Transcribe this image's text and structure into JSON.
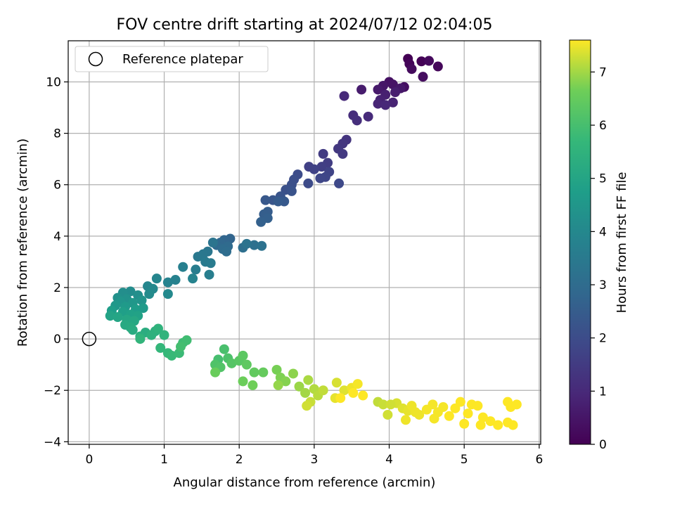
{
  "chart_data": {
    "type": "scatter",
    "title": "FOV centre drift starting at 2024/07/12 02:04:05",
    "xlabel": "Angular distance from reference (arcmin)",
    "ylabel": "Rotation from reference (arcmin)",
    "xlim": [
      -0.28,
      6.02
    ],
    "ylim": [
      -4.1,
      11.6
    ],
    "x_ticks": [
      0,
      1,
      2,
      3,
      4,
      5,
      6
    ],
    "x_tick_labels": [
      "0",
      "1",
      "2",
      "3",
      "4",
      "5",
      "6"
    ],
    "y_ticks": [
      -4,
      -2,
      0,
      2,
      4,
      6,
      8,
      10
    ],
    "y_tick_labels": [
      "−4",
      "−2",
      "0",
      "2",
      "4",
      "6",
      "8",
      "10"
    ],
    "grid": true,
    "legend": {
      "placement": "top-left",
      "entries": [
        {
          "label": "Reference platepar",
          "marker": "open-circle"
        }
      ]
    },
    "reference_point": {
      "x": 0,
      "y": 0
    },
    "colorbar": {
      "label": "Hours from first FF file",
      "colormap": "viridis",
      "range": [
        0,
        7.6
      ],
      "ticks": [
        0,
        1,
        2,
        3,
        4,
        5,
        6,
        7
      ],
      "tick_labels": [
        "0",
        "1",
        "2",
        "3",
        "4",
        "5",
        "6",
        "7"
      ]
    },
    "points": [
      {
        "x": 4.25,
        "y": 10.9,
        "t": 0.0
      },
      {
        "x": 4.43,
        "y": 10.8,
        "t": 0.05
      },
      {
        "x": 4.27,
        "y": 10.7,
        "t": 0.1
      },
      {
        "x": 4.65,
        "y": 10.6,
        "t": 0.15
      },
      {
        "x": 4.53,
        "y": 10.82,
        "t": 0.2
      },
      {
        "x": 4.3,
        "y": 10.5,
        "t": 0.25
      },
      {
        "x": 4.45,
        "y": 10.2,
        "t": 0.3
      },
      {
        "x": 4.2,
        "y": 9.8,
        "t": 0.35
      },
      {
        "x": 4.0,
        "y": 10.0,
        "t": 0.4
      },
      {
        "x": 4.05,
        "y": 9.9,
        "t": 0.45
      },
      {
        "x": 3.92,
        "y": 9.85,
        "t": 0.5
      },
      {
        "x": 4.15,
        "y": 9.75,
        "t": 0.55
      },
      {
        "x": 3.85,
        "y": 9.7,
        "t": 0.6
      },
      {
        "x": 3.63,
        "y": 9.7,
        "t": 0.65
      },
      {
        "x": 4.08,
        "y": 9.6,
        "t": 0.7
      },
      {
        "x": 3.95,
        "y": 9.5,
        "t": 0.75
      },
      {
        "x": 3.88,
        "y": 9.3,
        "t": 0.8
      },
      {
        "x": 4.05,
        "y": 9.2,
        "t": 0.85
      },
      {
        "x": 3.85,
        "y": 9.15,
        "t": 0.9
      },
      {
        "x": 3.95,
        "y": 9.1,
        "t": 0.95
      },
      {
        "x": 3.4,
        "y": 9.45,
        "t": 1.0
      },
      {
        "x": 3.72,
        "y": 8.65,
        "t": 1.05
      },
      {
        "x": 3.52,
        "y": 8.7,
        "t": 1.1
      },
      {
        "x": 3.57,
        "y": 8.5,
        "t": 1.15
      },
      {
        "x": 3.43,
        "y": 7.75,
        "t": 1.3
      },
      {
        "x": 3.38,
        "y": 7.6,
        "t": 1.35
      },
      {
        "x": 3.32,
        "y": 7.4,
        "t": 1.4
      },
      {
        "x": 3.38,
        "y": 7.2,
        "t": 1.45
      },
      {
        "x": 3.12,
        "y": 7.2,
        "t": 1.5
      },
      {
        "x": 3.18,
        "y": 6.85,
        "t": 1.55
      },
      {
        "x": 3.1,
        "y": 6.7,
        "t": 1.6
      },
      {
        "x": 2.93,
        "y": 6.7,
        "t": 1.65
      },
      {
        "x": 3.0,
        "y": 6.6,
        "t": 1.7
      },
      {
        "x": 3.2,
        "y": 6.5,
        "t": 1.75
      },
      {
        "x": 3.15,
        "y": 6.3,
        "t": 1.8
      },
      {
        "x": 3.08,
        "y": 6.25,
        "t": 1.85
      },
      {
        "x": 3.33,
        "y": 6.05,
        "t": 1.9
      },
      {
        "x": 2.92,
        "y": 6.05,
        "t": 1.95
      },
      {
        "x": 2.78,
        "y": 6.4,
        "t": 2.0
      },
      {
        "x": 2.73,
        "y": 6.2,
        "t": 2.05
      },
      {
        "x": 2.7,
        "y": 6.0,
        "t": 2.1
      },
      {
        "x": 2.62,
        "y": 5.8,
        "t": 2.15
      },
      {
        "x": 2.7,
        "y": 5.75,
        "t": 2.2
      },
      {
        "x": 2.55,
        "y": 5.55,
        "t": 2.25
      },
      {
        "x": 2.45,
        "y": 5.4,
        "t": 2.3
      },
      {
        "x": 2.35,
        "y": 5.4,
        "t": 2.35
      },
      {
        "x": 2.6,
        "y": 5.35,
        "t": 2.4
      },
      {
        "x": 2.52,
        "y": 5.35,
        "t": 2.45
      },
      {
        "x": 2.38,
        "y": 4.95,
        "t": 2.5
      },
      {
        "x": 2.33,
        "y": 4.85,
        "t": 2.55
      },
      {
        "x": 2.38,
        "y": 4.7,
        "t": 2.6
      },
      {
        "x": 2.29,
        "y": 4.55,
        "t": 2.65
      },
      {
        "x": 1.88,
        "y": 3.9,
        "t": 2.75
      },
      {
        "x": 1.8,
        "y": 3.85,
        "t": 2.8
      },
      {
        "x": 1.75,
        "y": 3.75,
        "t": 2.85
      },
      {
        "x": 1.7,
        "y": 3.65,
        "t": 2.9
      },
      {
        "x": 1.85,
        "y": 3.6,
        "t": 2.95
      },
      {
        "x": 1.78,
        "y": 3.5,
        "t": 3.0
      },
      {
        "x": 1.83,
        "y": 3.4,
        "t": 3.05
      },
      {
        "x": 2.05,
        "y": 3.55,
        "t": 3.1
      },
      {
        "x": 2.2,
        "y": 3.65,
        "t": 3.15
      },
      {
        "x": 2.3,
        "y": 3.62,
        "t": 3.2
      },
      {
        "x": 2.1,
        "y": 3.7,
        "t": 3.25
      },
      {
        "x": 1.65,
        "y": 3.75,
        "t": 3.3
      },
      {
        "x": 1.58,
        "y": 3.4,
        "t": 3.35
      },
      {
        "x": 1.52,
        "y": 3.3,
        "t": 3.4
      },
      {
        "x": 1.45,
        "y": 3.2,
        "t": 3.45
      },
      {
        "x": 1.55,
        "y": 3.0,
        "t": 3.5
      },
      {
        "x": 1.62,
        "y": 2.95,
        "t": 3.55
      },
      {
        "x": 1.42,
        "y": 2.7,
        "t": 3.6
      },
      {
        "x": 1.6,
        "y": 2.5,
        "t": 3.65
      },
      {
        "x": 1.25,
        "y": 2.8,
        "t": 3.7
      },
      {
        "x": 1.15,
        "y": 2.3,
        "t": 3.75
      },
      {
        "x": 1.05,
        "y": 2.2,
        "t": 3.8
      },
      {
        "x": 1.38,
        "y": 2.35,
        "t": 3.85
      },
      {
        "x": 0.9,
        "y": 2.35,
        "t": 3.9
      },
      {
        "x": 0.78,
        "y": 2.05,
        "t": 3.95
      },
      {
        "x": 0.85,
        "y": 1.95,
        "t": 4.0
      },
      {
        "x": 1.05,
        "y": 1.75,
        "t": 4.05
      },
      {
        "x": 0.8,
        "y": 1.75,
        "t": 4.1
      },
      {
        "x": 0.55,
        "y": 1.85,
        "t": 4.15
      },
      {
        "x": 0.45,
        "y": 1.8,
        "t": 4.2
      },
      {
        "x": 0.65,
        "y": 1.7,
        "t": 4.25
      },
      {
        "x": 0.38,
        "y": 1.6,
        "t": 4.3
      },
      {
        "x": 0.5,
        "y": 1.55,
        "t": 4.35
      },
      {
        "x": 0.7,
        "y": 1.5,
        "t": 4.4
      },
      {
        "x": 0.42,
        "y": 1.45,
        "t": 4.45
      },
      {
        "x": 0.58,
        "y": 1.4,
        "t": 4.5
      },
      {
        "x": 0.35,
        "y": 1.3,
        "t": 4.55
      },
      {
        "x": 0.48,
        "y": 1.25,
        "t": 4.6
      },
      {
        "x": 0.72,
        "y": 1.2,
        "t": 4.65
      },
      {
        "x": 0.62,
        "y": 1.15,
        "t": 4.7
      },
      {
        "x": 0.3,
        "y": 1.1,
        "t": 4.75
      },
      {
        "x": 0.45,
        "y": 1.05,
        "t": 4.8
      },
      {
        "x": 0.55,
        "y": 0.95,
        "t": 4.85
      },
      {
        "x": 0.65,
        "y": 0.9,
        "t": 4.9
      },
      {
        "x": 0.28,
        "y": 0.9,
        "t": 4.95
      },
      {
        "x": 0.38,
        "y": 0.85,
        "t": 5.0
      },
      {
        "x": 0.5,
        "y": 0.75,
        "t": 5.05
      },
      {
        "x": 0.6,
        "y": 0.7,
        "t": 5.1
      },
      {
        "x": 0.48,
        "y": 0.55,
        "t": 5.15
      },
      {
        "x": 0.55,
        "y": 0.45,
        "t": 5.2
      },
      {
        "x": 0.58,
        "y": 0.35,
        "t": 5.25
      },
      {
        "x": 0.75,
        "y": 0.25,
        "t": 5.3
      },
      {
        "x": 0.68,
        "y": 0.1,
        "t": 5.35
      },
      {
        "x": 0.88,
        "y": 0.3,
        "t": 5.4
      },
      {
        "x": 0.83,
        "y": 0.15,
        "t": 5.45
      },
      {
        "x": 0.92,
        "y": 0.4,
        "t": 5.5
      },
      {
        "x": 1.0,
        "y": 0.15,
        "t": 5.55
      },
      {
        "x": 0.68,
        "y": 0.0,
        "t": 5.6
      },
      {
        "x": 0.95,
        "y": -0.35,
        "t": 5.65
      },
      {
        "x": 1.05,
        "y": -0.55,
        "t": 5.7
      },
      {
        "x": 1.1,
        "y": -0.65,
        "t": 5.75
      },
      {
        "x": 1.2,
        "y": -0.55,
        "t": 5.8
      },
      {
        "x": 1.25,
        "y": -0.15,
        "t": 5.85
      },
      {
        "x": 1.3,
        "y": -0.05,
        "t": 5.9
      },
      {
        "x": 1.22,
        "y": -0.3,
        "t": 5.95
      },
      {
        "x": 1.72,
        "y": -0.8,
        "t": 6.0
      },
      {
        "x": 1.8,
        "y": -0.4,
        "t": 6.05
      },
      {
        "x": 1.85,
        "y": -0.75,
        "t": 6.1
      },
      {
        "x": 1.68,
        "y": -1.0,
        "t": 6.15
      },
      {
        "x": 1.75,
        "y": -1.1,
        "t": 6.2
      },
      {
        "x": 1.9,
        "y": -0.95,
        "t": 6.25
      },
      {
        "x": 2.0,
        "y": -0.85,
        "t": 6.3
      },
      {
        "x": 2.05,
        "y": -0.65,
        "t": 6.35
      },
      {
        "x": 2.1,
        "y": -1.0,
        "t": 6.4
      },
      {
        "x": 2.2,
        "y": -1.3,
        "t": 6.45
      },
      {
        "x": 2.32,
        "y": -1.3,
        "t": 6.5
      },
      {
        "x": 1.68,
        "y": -1.3,
        "t": 6.55
      },
      {
        "x": 2.05,
        "y": -1.65,
        "t": 6.6
      },
      {
        "x": 2.18,
        "y": -1.8,
        "t": 6.65
      },
      {
        "x": 2.5,
        "y": -1.2,
        "t": 6.7
      },
      {
        "x": 2.55,
        "y": -1.5,
        "t": 6.75
      },
      {
        "x": 2.62,
        "y": -1.65,
        "t": 6.8
      },
      {
        "x": 2.72,
        "y": -1.35,
        "t": 6.85
      },
      {
        "x": 2.52,
        "y": -1.8,
        "t": 6.9
      },
      {
        "x": 2.8,
        "y": -1.85,
        "t": 6.95
      },
      {
        "x": 2.88,
        "y": -2.1,
        "t": 7.0
      },
      {
        "x": 2.92,
        "y": -1.6,
        "t": 7.05
      },
      {
        "x": 3.0,
        "y": -1.95,
        "t": 7.1
      },
      {
        "x": 3.05,
        "y": -2.2,
        "t": 7.15
      },
      {
        "x": 3.12,
        "y": -2.0,
        "t": 7.2
      },
      {
        "x": 2.95,
        "y": -2.45,
        "t": 7.25
      },
      {
        "x": 2.9,
        "y": -2.6,
        "t": 7.3
      },
      {
        "x": 3.3,
        "y": -1.7,
        "t": 7.35
      },
      {
        "x": 3.4,
        "y": -2.0,
        "t": 7.4
      },
      {
        "x": 3.28,
        "y": -2.3,
        "t": 7.45
      },
      {
        "x": 3.5,
        "y": -1.9,
        "t": 7.5
      },
      {
        "x": 3.58,
        "y": -1.75,
        "t": 7.55
      },
      {
        "x": 3.52,
        "y": -2.1,
        "t": 7.6
      },
      {
        "x": 3.65,
        "y": -2.2,
        "t": 7.6
      },
      {
        "x": 3.35,
        "y": -2.3,
        "t": 7.6
      },
      {
        "x": 3.85,
        "y": -2.45,
        "t": 7.2
      },
      {
        "x": 3.92,
        "y": -2.55,
        "t": 7.25
      },
      {
        "x": 3.98,
        "y": -2.95,
        "t": 7.3
      },
      {
        "x": 4.1,
        "y": -2.5,
        "t": 7.35
      },
      {
        "x": 4.18,
        "y": -2.7,
        "t": 7.4
      },
      {
        "x": 4.25,
        "y": -2.8,
        "t": 7.45
      },
      {
        "x": 4.22,
        "y": -3.15,
        "t": 7.5
      },
      {
        "x": 4.3,
        "y": -2.6,
        "t": 7.5
      },
      {
        "x": 4.4,
        "y": -2.95,
        "t": 7.5
      },
      {
        "x": 4.5,
        "y": -2.75,
        "t": 7.55
      },
      {
        "x": 4.58,
        "y": -2.55,
        "t": 7.55
      },
      {
        "x": 4.65,
        "y": -2.85,
        "t": 7.55
      },
      {
        "x": 4.72,
        "y": -2.65,
        "t": 7.55
      },
      {
        "x": 4.8,
        "y": -3.0,
        "t": 7.6
      },
      {
        "x": 4.88,
        "y": -2.7,
        "t": 7.6
      },
      {
        "x": 4.95,
        "y": -2.45,
        "t": 7.6
      },
      {
        "x": 5.0,
        "y": -3.3,
        "t": 7.6
      },
      {
        "x": 5.05,
        "y": -2.9,
        "t": 7.6
      },
      {
        "x": 5.1,
        "y": -2.55,
        "t": 7.6
      },
      {
        "x": 5.18,
        "y": -2.6,
        "t": 7.6
      },
      {
        "x": 5.25,
        "y": -3.05,
        "t": 7.6
      },
      {
        "x": 5.35,
        "y": -3.2,
        "t": 7.6
      },
      {
        "x": 5.45,
        "y": -3.35,
        "t": 7.6
      },
      {
        "x": 5.58,
        "y": -2.45,
        "t": 7.6
      },
      {
        "x": 5.62,
        "y": -2.65,
        "t": 7.6
      },
      {
        "x": 5.7,
        "y": -2.55,
        "t": 7.6
      },
      {
        "x": 5.58,
        "y": -3.25,
        "t": 7.6
      },
      {
        "x": 5.65,
        "y": -3.35,
        "t": 7.6
      },
      {
        "x": 5.22,
        "y": -3.35,
        "t": 7.6
      },
      {
        "x": 4.35,
        "y": -2.85,
        "t": 7.5
      },
      {
        "x": 4.6,
        "y": -3.1,
        "t": 7.55
      },
      {
        "x": 4.02,
        "y": -2.55,
        "t": 7.3
      }
    ]
  }
}
